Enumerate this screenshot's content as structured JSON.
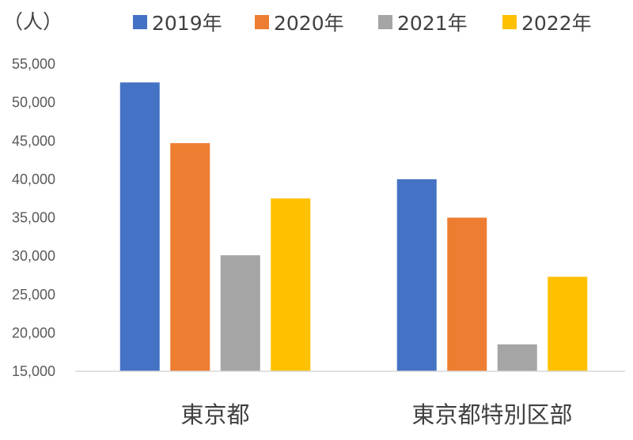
{
  "chart_data": {
    "type": "bar",
    "title": "",
    "xlabel": "",
    "ylabel": "",
    "unit_label": "（人）",
    "categories": [
      "東京都",
      "東京都特別区部"
    ],
    "series": [
      {
        "name": "2019年",
        "color": "#4472c4",
        "values": [
          52600,
          40000
        ]
      },
      {
        "name": "2020年",
        "color": "#ed7d31",
        "values": [
          44700,
          35000
        ]
      },
      {
        "name": "2021年",
        "color": "#a5a5a5",
        "values": [
          30100,
          18500
        ]
      },
      {
        "name": "2022年",
        "color": "#ffc000",
        "values": [
          37500,
          27300
        ]
      }
    ],
    "ylim": [
      15000,
      55000
    ],
    "yticks": [
      15000,
      20000,
      25000,
      30000,
      35000,
      40000,
      45000,
      50000,
      55000
    ],
    "ytick_labels": [
      "15,000",
      "20,000",
      "25,000",
      "30,000",
      "35,000",
      "40,000",
      "45,000",
      "50,000",
      "55,000"
    ],
    "grid": false,
    "legend_position": "top"
  }
}
